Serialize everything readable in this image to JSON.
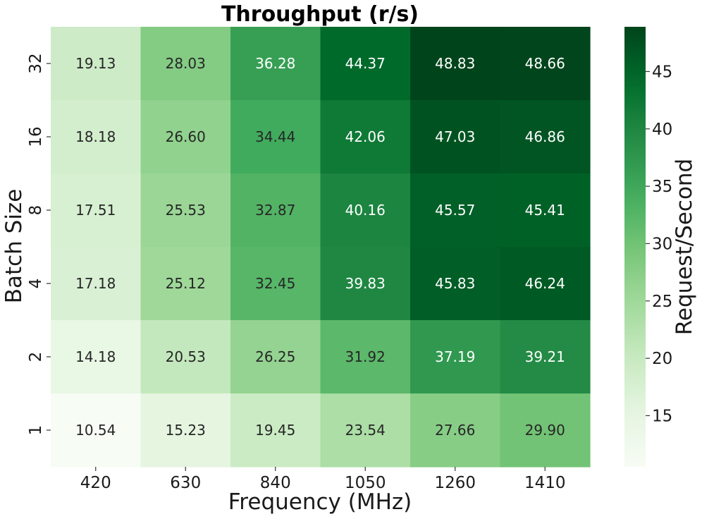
{
  "chart_data": {
    "type": "heatmap",
    "title": "Throughput (r/s)",
    "xlabel": "Frequency (MHz)",
    "ylabel": "Batch Size",
    "colorbar_label": "Request/Second",
    "x_categories": [
      "420",
      "630",
      "840",
      "1050",
      "1260",
      "1410"
    ],
    "y_categories": [
      "32",
      "16",
      "8",
      "4",
      "2",
      "1"
    ],
    "values": [
      [
        19.13,
        28.03,
        36.28,
        44.37,
        48.83,
        48.66
      ],
      [
        18.18,
        26.6,
        34.44,
        42.06,
        47.03,
        46.86
      ],
      [
        17.51,
        25.53,
        32.87,
        40.16,
        45.57,
        45.41
      ],
      [
        17.18,
        25.12,
        32.45,
        39.83,
        45.83,
        46.24
      ],
      [
        14.18,
        20.53,
        26.25,
        31.92,
        37.19,
        39.21
      ],
      [
        10.54,
        15.23,
        19.45,
        23.54,
        27.66,
        29.9
      ]
    ],
    "value_format": "2 decimals",
    "color_range": [
      10.54,
      48.83
    ],
    "colormap": "Greens",
    "colorbar_ticks": [
      "15",
      "20",
      "25",
      "30",
      "35",
      "40",
      "45"
    ],
    "colors": {
      "low": "#f7fcf5",
      "high": "#00441b",
      "text_dark": "#262626",
      "text_light": "#ffffff"
    }
  }
}
